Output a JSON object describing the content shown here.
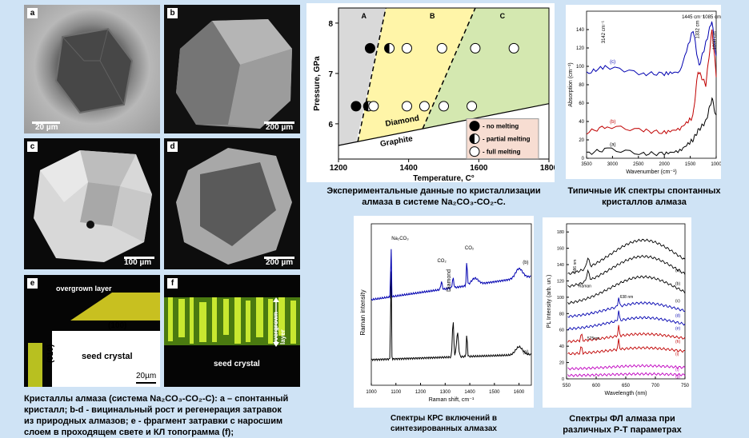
{
  "photos": {
    "a": {
      "label": "a",
      "scale": "20 µm"
    },
    "b": {
      "label": "b",
      "scale": "200 µm"
    },
    "c": {
      "label": "c",
      "scale": "100 µm"
    },
    "d": {
      "label": "d",
      "scale": "200 µm"
    },
    "e": {
      "label": "e",
      "overgrown": "overgrown layer",
      "face100": "(100)",
      "face010": "(010)",
      "seed": "seed crystal",
      "scale": "20µm"
    },
    "f": {
      "label": "f",
      "overgrown": "overgrown layer",
      "seed": "seed crystal"
    }
  },
  "captions": {
    "crystals_line1": "Кристаллы алмаза (система Na₂CO₃-CO₂-C): a – спонтанный",
    "crystals_line2": "кристалл; b-d - вицинальный рост и регенерация затравок",
    "crystals_line3": "из природных алмазов; e - фрагмент затравки с наросшим",
    "crystals_line4": "слоем в проходящем  свете и КЛ топограмма  (f);",
    "phase_line1": "Экспериментальные данные по кристаллизации",
    "phase_line2": "алмаза в системе Na₂CO₃-CO₂-C.",
    "ir_line1": "Типичные ИК спектры спонтанных",
    "ir_line2": "кристаллов алмаза",
    "raman_line1": "Спектры КРС включений в",
    "raman_line2": "синтезированных алмазах",
    "pl_line1": "Спектры  ФЛ алмаза при",
    "pl_line2": "различных P-T параметрах"
  },
  "chart_data": [
    {
      "type": "scatter",
      "xlabel": "Temperature, C°",
      "ylabel": "Pressure, GPa",
      "xlim": [
        1200,
        1800
      ],
      "ylim": [
        5.3,
        8.3
      ],
      "xticks": [
        1200,
        1400,
        1600,
        1800
      ],
      "yticks": [
        6,
        7,
        8
      ],
      "regions": [
        "A",
        "B",
        "C"
      ],
      "boundary_labels": [
        "Diamond",
        "Graphite"
      ],
      "legend": [
        "- no melting",
        "- partial melting",
        "- full melting"
      ],
      "legend_position": "bottom-right",
      "points": [
        {
          "x": 1250,
          "y": 6.35,
          "state": "no"
        },
        {
          "x": 1285,
          "y": 6.35,
          "state": "partial"
        },
        {
          "x": 1300,
          "y": 6.35,
          "state": "full"
        },
        {
          "x": 1395,
          "y": 6.35,
          "state": "full"
        },
        {
          "x": 1445,
          "y": 6.35,
          "state": "full"
        },
        {
          "x": 1500,
          "y": 6.35,
          "state": "full"
        },
        {
          "x": 1580,
          "y": 6.35,
          "state": "full"
        },
        {
          "x": 1290,
          "y": 7.5,
          "state": "no"
        },
        {
          "x": 1345,
          "y": 7.5,
          "state": "partial"
        },
        {
          "x": 1395,
          "y": 7.5,
          "state": "full"
        },
        {
          "x": 1495,
          "y": 7.5,
          "state": "full"
        },
        {
          "x": 1590,
          "y": 7.5,
          "state": "full"
        },
        {
          "x": 1700,
          "y": 7.5,
          "state": "full"
        }
      ]
    },
    {
      "type": "line",
      "xlabel": "Wavenumber (cm⁻¹)",
      "ylabel": "Absorption (cm⁻¹)",
      "xlim": [
        3500,
        1000
      ],
      "ylim": [
        0,
        160
      ],
      "xticks": [
        3500,
        3000,
        2500,
        2000,
        1500,
        1000
      ],
      "yticks": [
        0,
        20,
        40,
        60,
        80,
        100,
        120,
        140
      ],
      "series": [
        {
          "name": "(a)",
          "color": "#000000",
          "x": [
            3500,
            3100,
            2400,
            2000,
            1700,
            1450,
            1350,
            1200,
            1080,
            1000
          ],
          "y": [
            5,
            10,
            5,
            5,
            8,
            20,
            30,
            40,
            65,
            45
          ]
        },
        {
          "name": "(b)",
          "color": "#c00000",
          "x": [
            3500,
            3100,
            2400,
            2000,
            1700,
            1450,
            1350,
            1200,
            1080,
            1000
          ],
          "y": [
            28,
            35,
            30,
            28,
            32,
            45,
            95,
            80,
            140,
            90
          ]
        },
        {
          "name": "(c)",
          "color": "#0000b0",
          "x": [
            3500,
            3142,
            2400,
            2000,
            1700,
            1445,
            1332,
            1200,
            1085,
            1000
          ],
          "y": [
            92,
            100,
            92,
            92,
            94,
            140,
            100,
            125,
            150,
            110
          ]
        }
      ],
      "annotations": [
        "3142 cm⁻¹",
        "1445 cm⁻¹",
        "1332 cm",
        "1085 cm",
        "1000 cm"
      ]
    },
    {
      "type": "line",
      "xlabel": "Raman shift, cm⁻¹",
      "ylabel": "Raman intensity",
      "xlim": [
        1000,
        1650
      ],
      "xticks": [
        1000,
        1100,
        1200,
        1300,
        1400,
        1500,
        1600
      ],
      "series": [
        {
          "name": "(a)",
          "color": "#000000"
        },
        {
          "name": "(b)",
          "color": "#0000b0"
        }
      ],
      "annotations": [
        "Na₂CO₃",
        "CO₂",
        "CO₂",
        "Diamond"
      ]
    },
    {
      "type": "line",
      "xlabel": "Wavelength (nm)",
      "ylabel": "PL Intensity (arb. un.)",
      "xlim": [
        550,
        750
      ],
      "xticks": [
        550,
        600,
        650,
        700,
        750
      ],
      "yticks": [
        0,
        20,
        40,
        60,
        80,
        100,
        120,
        140,
        160,
        180
      ],
      "series": [
        {
          "name": "(a)",
          "color": "#000000"
        },
        {
          "name": "(b)",
          "color": "#000000"
        },
        {
          "name": "(c)",
          "color": "#000000"
        },
        {
          "name": "(d)",
          "color": "#0000b0"
        },
        {
          "name": "(e)",
          "color": "#0000b0"
        },
        {
          "name": "(h)",
          "color": "#c00000"
        },
        {
          "name": "(i)",
          "color": "#c00000"
        },
        {
          "name": "(f)",
          "color": "#c000c0"
        },
        {
          "name": "(g)",
          "color": "#c000c0"
        }
      ],
      "annotations": [
        "586 nm",
        "Raman",
        "638 nm",
        "575nm"
      ]
    }
  ]
}
